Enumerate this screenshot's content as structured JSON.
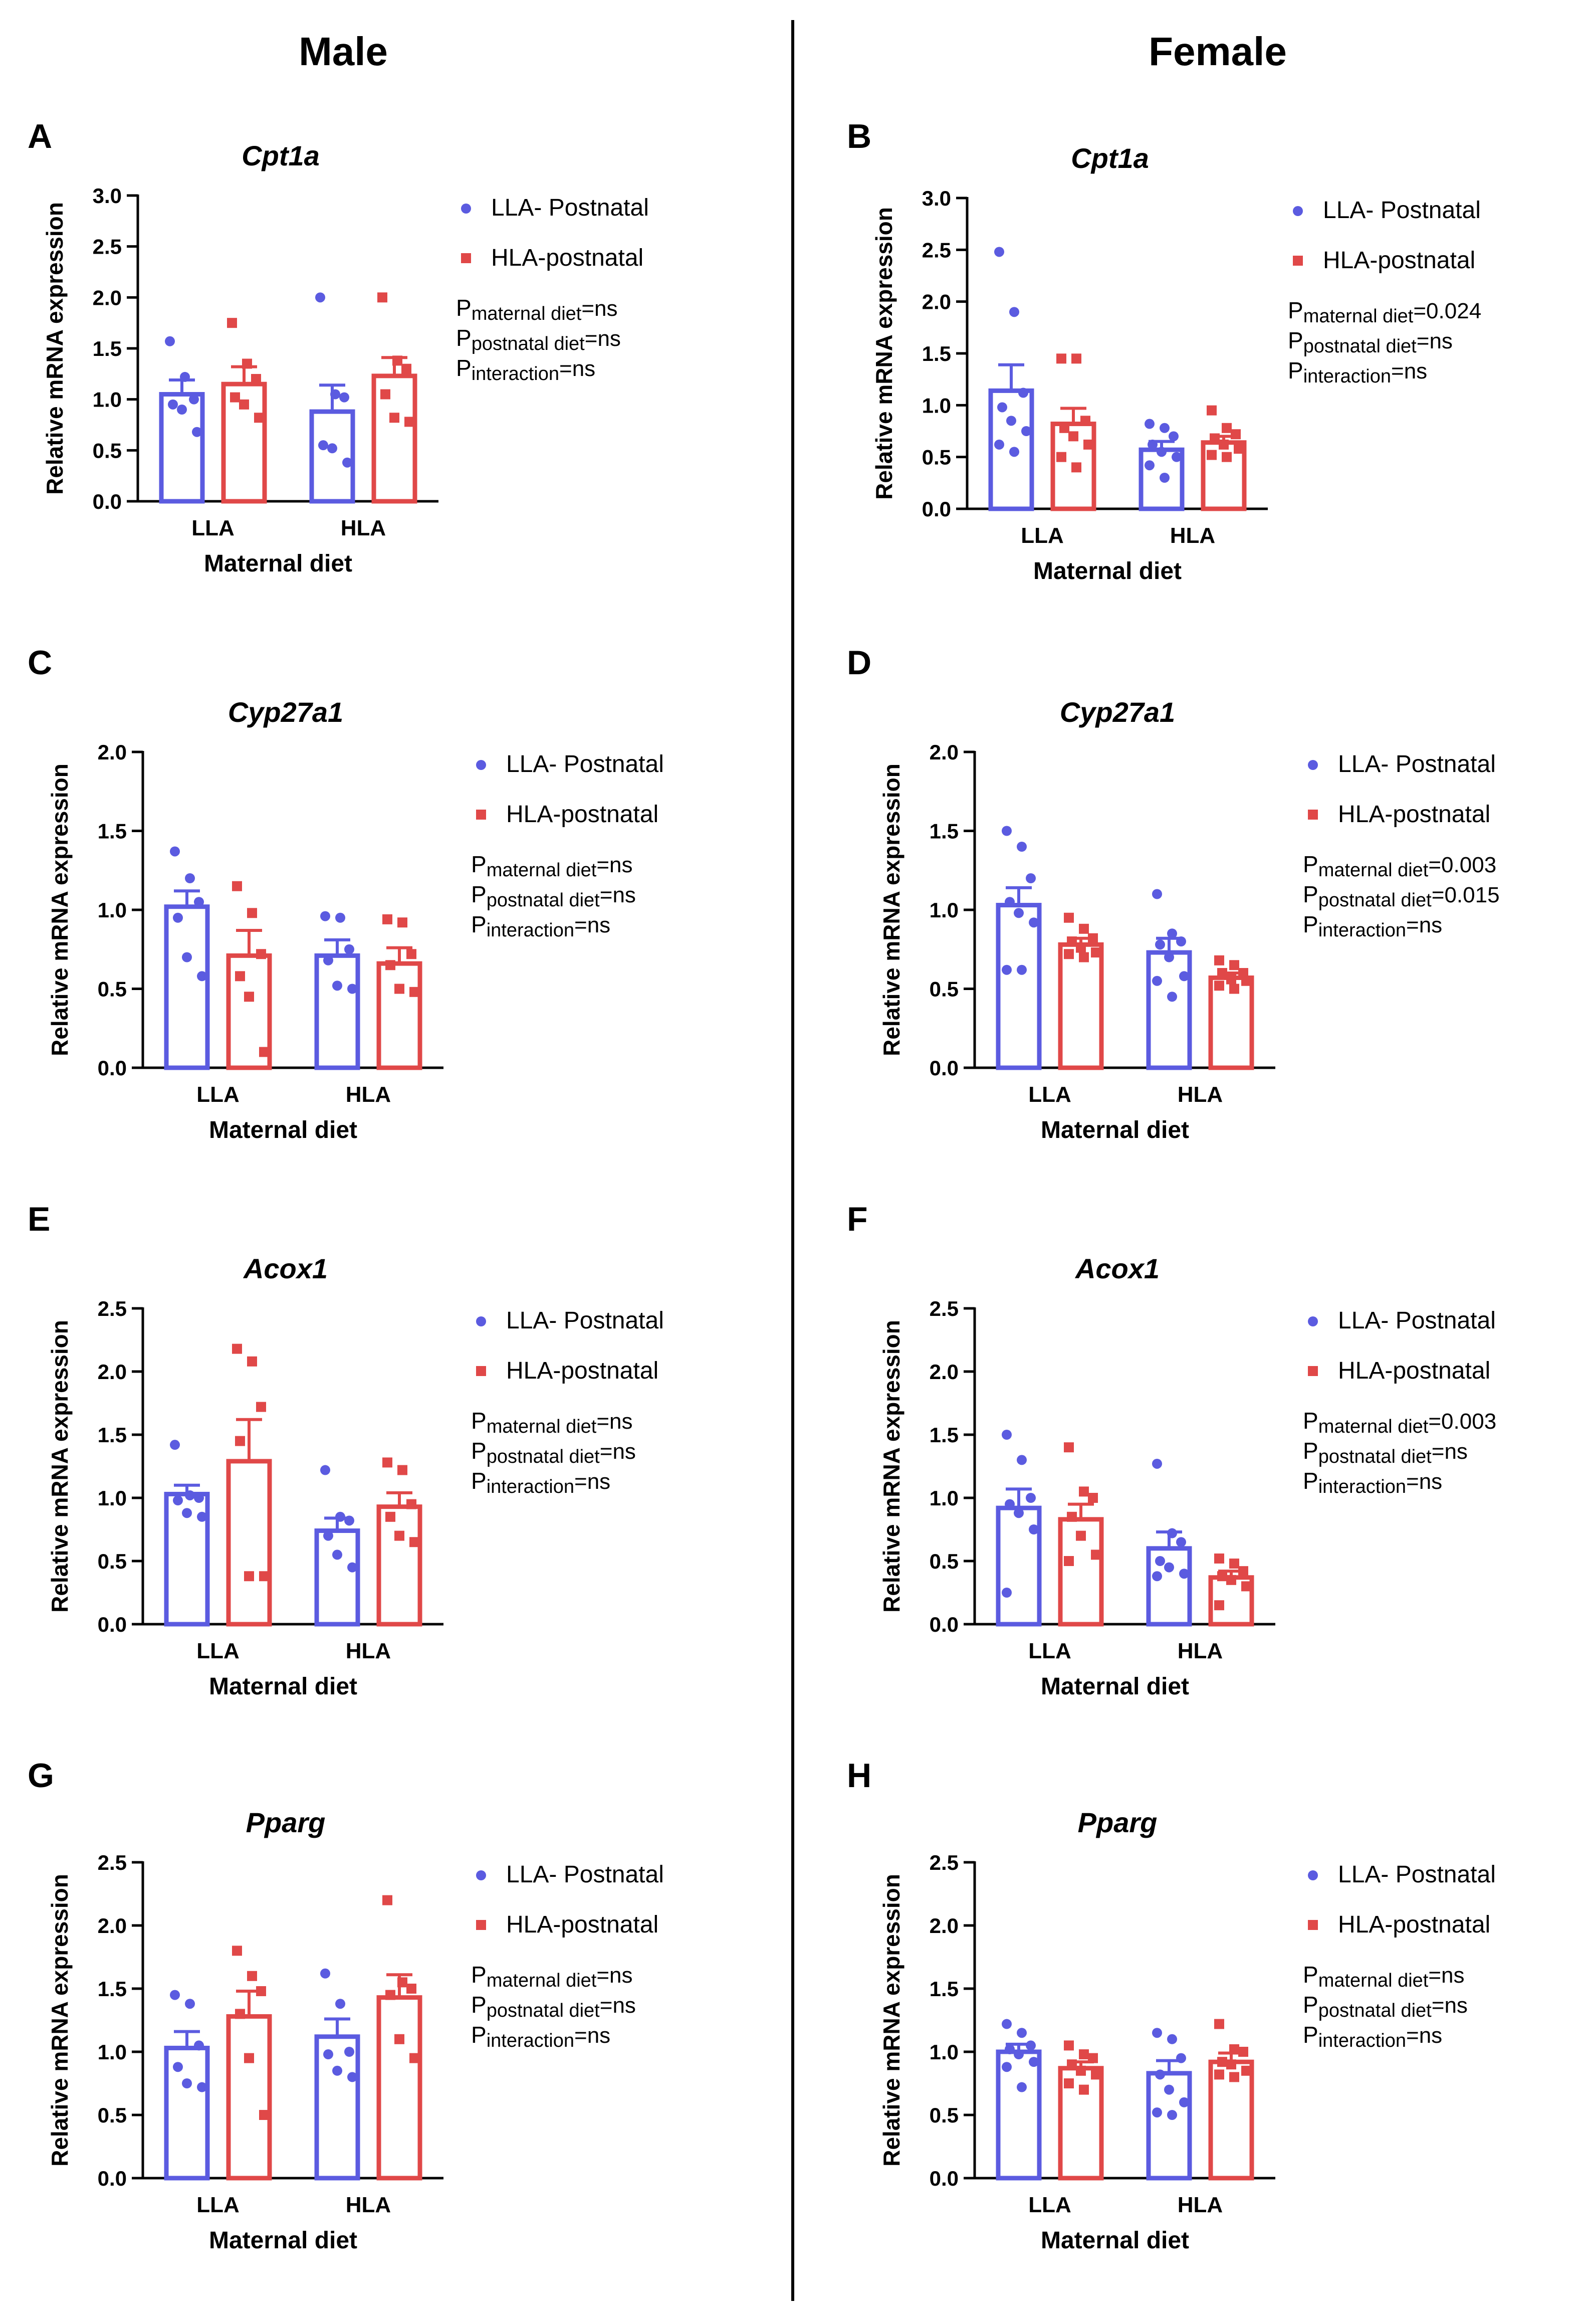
{
  "figure": {
    "columns": [
      "Male",
      "Female"
    ]
  },
  "styles": {
    "llaColor": "#5b5be0",
    "hlaColor": "#e04848",
    "axisColor": "#000000"
  },
  "chart_data": [
    {
      "id": "A",
      "sex": "Male",
      "type": "bar",
      "title": "Cpt1a",
      "ylabel": "Relative mRNA expression",
      "xlabel": "Maternal diet",
      "categories": [
        "LLA",
        "HLA"
      ],
      "ylim": [
        0,
        3.0
      ],
      "yticks": [
        "0.0",
        "0.5",
        "1.0",
        "1.5",
        "2.0",
        "2.5",
        "3.0"
      ],
      "ystep": 0.5,
      "legend": [
        "LLA- Postnatal",
        "HLA-postnatal"
      ],
      "stats": [
        [
          "maternal diet",
          "=ns"
        ],
        [
          "postnatal diet",
          "=ns"
        ],
        [
          "interaction",
          "=ns"
        ]
      ],
      "series": [
        {
          "name": "LLA- Postnatal",
          "means": [
            1.05,
            0.88
          ],
          "sem": [
            0.14,
            0.26
          ],
          "points": [
            [
              1.57,
              1.22,
              1.0,
              0.95,
              0.9,
              0.68
            ],
            [
              2.0,
              1.05,
              1.02,
              0.55,
              0.52,
              0.38
            ]
          ]
        },
        {
          "name": "HLA-postnatal",
          "means": [
            1.15,
            1.23
          ],
          "sem": [
            0.17,
            0.18
          ],
          "points": [
            [
              1.75,
              1.35,
              1.2,
              1.02,
              0.95,
              0.82
            ],
            [
              2.0,
              1.38,
              1.3,
              1.05,
              0.82,
              0.78
            ]
          ]
        }
      ]
    },
    {
      "id": "B",
      "sex": "Female",
      "type": "bar",
      "title": "Cpt1a",
      "ylabel": "Relative mRNA expression",
      "xlabel": "Maternal diet",
      "categories": [
        "LLA",
        "HLA"
      ],
      "ylim": [
        0,
        3.0
      ],
      "yticks": [
        "0.0",
        "0.5",
        "1.0",
        "1.5",
        "2.0",
        "2.5",
        "3.0"
      ],
      "ystep": 0.5,
      "legend": [
        "LLA- Postnatal",
        "HLA-postnatal"
      ],
      "stats": [
        [
          "maternal diet",
          "=0.024"
        ],
        [
          "postnatal diet",
          "=ns"
        ],
        [
          "interaction",
          "=ns"
        ]
      ],
      "series": [
        {
          "name": "LLA- Postnatal",
          "means": [
            1.14,
            0.57
          ],
          "sem": [
            0.25,
            0.08
          ],
          "points": [
            [
              2.48,
              1.9,
              1.12,
              0.98,
              0.85,
              0.75,
              0.62,
              0.55
            ],
            [
              0.82,
              0.78,
              0.7,
              0.62,
              0.55,
              0.5,
              0.42,
              0.3
            ]
          ]
        },
        {
          "name": "HLA-postnatal",
          "means": [
            0.82,
            0.64
          ],
          "sem": [
            0.15,
            0.06
          ],
          "points": [
            [
              1.45,
              1.45,
              0.85,
              0.78,
              0.7,
              0.62,
              0.5,
              0.4
            ],
            [
              0.95,
              0.78,
              0.72,
              0.68,
              0.62,
              0.58,
              0.52,
              0.5
            ]
          ]
        }
      ]
    },
    {
      "id": "C",
      "sex": "Male",
      "type": "bar",
      "title": "Cyp27a1",
      "ylabel": "Relative mRNA expression",
      "xlabel": "Maternal diet",
      "categories": [
        "LLA",
        "HLA"
      ],
      "ylim": [
        0,
        2.0
      ],
      "yticks": [
        "0.0",
        "0.5",
        "1.0",
        "1.5",
        "2.0"
      ],
      "ystep": 0.5,
      "legend": [
        "LLA- Postnatal",
        "HLA-postnatal"
      ],
      "stats": [
        [
          "maternal diet",
          "=ns"
        ],
        [
          "postnatal diet",
          "=ns"
        ],
        [
          "interaction",
          "=ns"
        ]
      ],
      "series": [
        {
          "name": "LLA- Postnatal",
          "means": [
            1.02,
            0.71
          ],
          "sem": [
            0.1,
            0.1
          ],
          "points": [
            [
              1.37,
              1.2,
              1.05,
              0.95,
              0.7,
              0.58
            ],
            [
              0.96,
              0.95,
              0.75,
              0.68,
              0.52,
              0.5
            ]
          ]
        },
        {
          "name": "HLA-postnatal",
          "means": [
            0.71,
            0.66
          ],
          "sem": [
            0.16,
            0.1
          ],
          "points": [
            [
              1.15,
              0.98,
              0.72,
              0.58,
              0.45,
              0.1
            ],
            [
              0.94,
              0.92,
              0.72,
              0.65,
              0.5,
              0.48
            ]
          ]
        }
      ]
    },
    {
      "id": "D",
      "sex": "Female",
      "type": "bar",
      "title": "Cyp27a1",
      "ylabel": "Relative mRNA expression",
      "xlabel": "Maternal diet",
      "categories": [
        "LLA",
        "HLA"
      ],
      "ylim": [
        0,
        2.0
      ],
      "yticks": [
        "0.0",
        "0.5",
        "1.0",
        "1.5",
        "2.0"
      ],
      "ystep": 0.5,
      "legend": [
        "LLA- Postnatal",
        "HLA-postnatal"
      ],
      "stats": [
        [
          "maternal diet",
          "=0.003"
        ],
        [
          "postnatal diet",
          "=0.015"
        ],
        [
          "interaction",
          "=ns"
        ]
      ],
      "series": [
        {
          "name": "LLA- Postnatal",
          "means": [
            1.03,
            0.73
          ],
          "sem": [
            0.11,
            0.09
          ],
          "points": [
            [
              1.5,
              1.4,
              1.2,
              1.05,
              0.98,
              0.92,
              0.62,
              0.62
            ],
            [
              1.1,
              0.85,
              0.8,
              0.78,
              0.7,
              0.58,
              0.55,
              0.45
            ]
          ]
        },
        {
          "name": "HLA-postnatal",
          "means": [
            0.78,
            0.57
          ],
          "sem": [
            0.04,
            0.03
          ],
          "points": [
            [
              0.95,
              0.88,
              0.82,
              0.8,
              0.76,
              0.73,
              0.72,
              0.7
            ],
            [
              0.68,
              0.65,
              0.6,
              0.6,
              0.56,
              0.55,
              0.52,
              0.5
            ]
          ]
        }
      ]
    },
    {
      "id": "E",
      "sex": "Male",
      "type": "bar",
      "title": "Acox1",
      "ylabel": "Relative mRNA expression",
      "xlabel": "Maternal diet",
      "categories": [
        "LLA",
        "HLA"
      ],
      "ylim": [
        0,
        2.5
      ],
      "yticks": [
        "0.0",
        "0.5",
        "1.0",
        "1.5",
        "2.0",
        "2.5"
      ],
      "ystep": 0.5,
      "legend": [
        "LLA- Postnatal",
        "HLA-postnatal"
      ],
      "stats": [
        [
          "maternal diet",
          "=ns"
        ],
        [
          "postnatal diet",
          "=ns"
        ],
        [
          "interaction",
          "=ns"
        ]
      ],
      "series": [
        {
          "name": "LLA- Postnatal",
          "means": [
            1.03,
            0.74
          ],
          "sem": [
            0.07,
            0.1
          ],
          "points": [
            [
              1.42,
              1.02,
              1.0,
              0.98,
              0.88,
              0.85
            ],
            [
              1.22,
              0.85,
              0.82,
              0.7,
              0.55,
              0.45
            ]
          ]
        },
        {
          "name": "HLA-postnatal",
          "means": [
            1.29,
            0.93
          ],
          "sem": [
            0.33,
            0.11
          ],
          "points": [
            [
              2.18,
              2.08,
              1.72,
              1.45,
              0.38,
              0.38
            ],
            [
              1.28,
              1.22,
              0.95,
              0.85,
              0.7,
              0.65
            ]
          ]
        }
      ]
    },
    {
      "id": "F",
      "sex": "Female",
      "type": "bar",
      "title": "Acox1",
      "ylabel": "Relative mRNA expression",
      "xlabel": "Maternal diet",
      "categories": [
        "LLA",
        "HLA"
      ],
      "ylim": [
        0,
        2.5
      ],
      "yticks": [
        "0.0",
        "0.5",
        "1.0",
        "1.5",
        "2.0",
        "2.5"
      ],
      "ystep": 0.5,
      "legend": [
        "LLA- Postnatal",
        "HLA-postnatal"
      ],
      "stats": [
        [
          "maternal diet",
          "=0.003"
        ],
        [
          "postnatal diet",
          "=ns"
        ],
        [
          "interaction",
          "=ns"
        ]
      ],
      "series": [
        {
          "name": "LLA- Postnatal",
          "means": [
            0.92,
            0.6
          ],
          "sem": [
            0.15,
            0.13
          ],
          "points": [
            [
              1.5,
              1.3,
              1.0,
              0.95,
              0.88,
              0.75,
              0.25
            ],
            [
              1.27,
              0.72,
              0.65,
              0.5,
              0.45,
              0.4,
              0.38
            ]
          ]
        },
        {
          "name": "HLA-postnatal",
          "means": [
            0.83,
            0.37
          ],
          "sem": [
            0.12,
            0.05
          ],
          "points": [
            [
              1.4,
              1.05,
              1.0,
              0.85,
              0.7,
              0.55,
              0.5
            ],
            [
              0.52,
              0.48,
              0.42,
              0.38,
              0.35,
              0.3,
              0.15
            ]
          ]
        }
      ]
    },
    {
      "id": "G",
      "sex": "Male",
      "type": "bar",
      "title": "Pparg",
      "ylabel": "Relative mRNA expression",
      "xlabel": "Maternal diet",
      "categories": [
        "LLA",
        "HLA"
      ],
      "ylim": [
        0,
        2.5
      ],
      "yticks": [
        "0.0",
        "0.5",
        "1.0",
        "1.5",
        "2.0",
        "2.5"
      ],
      "ystep": 0.5,
      "legend": [
        "LLA- Postnatal",
        "HLA-postnatal"
      ],
      "stats": [
        [
          "maternal diet",
          "=ns"
        ],
        [
          "postnatal diet",
          "=ns"
        ],
        [
          "interaction",
          "=ns"
        ]
      ],
      "series": [
        {
          "name": "LLA- Postnatal",
          "means": [
            1.03,
            1.12
          ],
          "sem": [
            0.13,
            0.14
          ],
          "points": [
            [
              1.45,
              1.38,
              1.05,
              0.88,
              0.75,
              0.72
            ],
            [
              1.62,
              1.38,
              1.0,
              0.98,
              0.85,
              0.8
            ]
          ]
        },
        {
          "name": "HLA-postnatal",
          "means": [
            1.28,
            1.43
          ],
          "sem": [
            0.2,
            0.18
          ],
          "points": [
            [
              1.8,
              1.6,
              1.48,
              1.3,
              0.95,
              0.5
            ],
            [
              2.2,
              1.55,
              1.5,
              1.45,
              1.1,
              0.95
            ]
          ]
        }
      ]
    },
    {
      "id": "H",
      "sex": "Female",
      "type": "bar",
      "title": "Pparg",
      "ylabel": "Relative mRNA expression",
      "xlabel": "Maternal diet",
      "categories": [
        "LLA",
        "HLA"
      ],
      "ylim": [
        0,
        2.5
      ],
      "yticks": [
        "0.0",
        "0.5",
        "1.0",
        "1.5",
        "2.0",
        "2.5"
      ],
      "ystep": 0.5,
      "legend": [
        "LLA- Postnatal",
        "HLA-postnatal"
      ],
      "stats": [
        [
          "maternal diet",
          "=ns"
        ],
        [
          "postnatal diet",
          "=ns"
        ],
        [
          "interaction",
          "=ns"
        ]
      ],
      "series": [
        {
          "name": "LLA- Postnatal",
          "means": [
            1.0,
            0.83
          ],
          "sem": [
            0.06,
            0.1
          ],
          "points": [
            [
              1.22,
              1.15,
              1.05,
              1.02,
              0.98,
              0.92,
              0.88,
              0.72
            ],
            [
              1.15,
              1.1,
              0.95,
              0.82,
              0.7,
              0.6,
              0.52,
              0.5
            ]
          ]
        },
        {
          "name": "HLA-postnatal",
          "means": [
            0.87,
            0.92
          ],
          "sem": [
            0.05,
            0.07
          ],
          "points": [
            [
              1.05,
              0.98,
              0.95,
              0.9,
              0.85,
              0.82,
              0.75,
              0.7
            ],
            [
              1.22,
              1.02,
              1.0,
              0.92,
              0.9,
              0.85,
              0.82,
              0.8
            ]
          ]
        }
      ]
    }
  ]
}
